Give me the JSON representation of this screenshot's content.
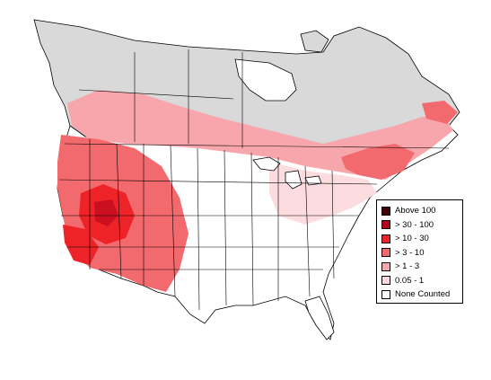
{
  "legend": {
    "items": [
      {
        "label": "Above 100",
        "color": "#4a0000"
      },
      {
        "label": "> 30 - 100",
        "color": "#b0001a"
      },
      {
        "label": "> 10 - 30",
        "color": "#ee2328"
      },
      {
        "label": "> 3 - 10",
        "color": "#f26a6e"
      },
      {
        "label": "> 1 - 3",
        "color": "#f7a7ac"
      },
      {
        "label": "0.05 - 1",
        "color": "#fcdcdf"
      },
      {
        "label": "None Counted",
        "color": "#ffffff"
      }
    ]
  },
  "colors": {
    "unsurveyed": "#d9d9d9",
    "background": "#ffffff",
    "borders": "#000000"
  }
}
